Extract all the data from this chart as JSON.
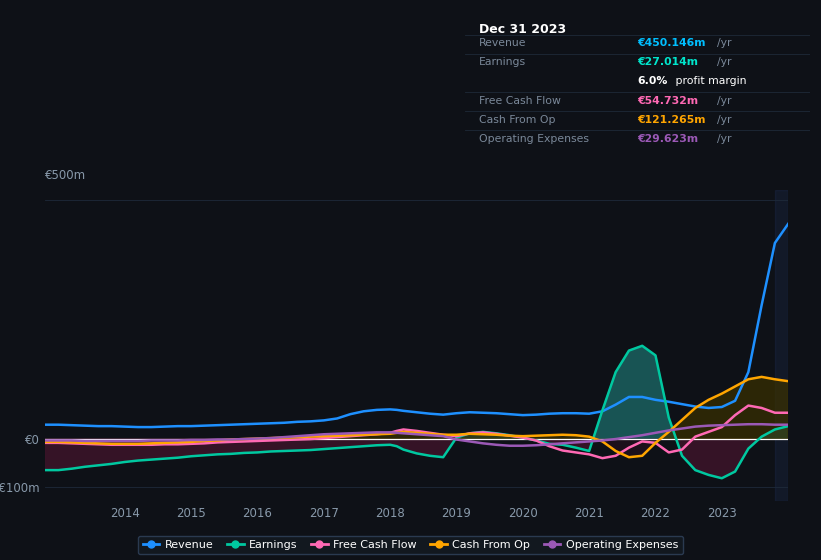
{
  "bg_color": "#0e1117",
  "plot_bg_color": "#0e1117",
  "grid_color": "#1e2a3a",
  "zero_line_color": "#ffffff",
  "title_text": "Dec 31 2023",
  "table_rows": [
    {
      "label": "Revenue",
      "value": "€450.146m",
      "val_color": "#00bfff",
      "sub": null
    },
    {
      "label": "Earnings",
      "value": "€27.014m",
      "val_color": "#00e5cc",
      "sub": "6.0% profit margin"
    },
    {
      "label": "Free Cash Flow",
      "value": "€54.732m",
      "val_color": "#ff69b4",
      "sub": null
    },
    {
      "label": "Cash From Op",
      "value": "€121.265m",
      "val_color": "#ffa500",
      "sub": null
    },
    {
      "label": "Operating Expenses",
      "value": "€29.623m",
      "val_color": "#9b59b6",
      "sub": null
    }
  ],
  "years": [
    2012.8,
    2013.0,
    2013.2,
    2013.4,
    2013.6,
    2013.8,
    2014.0,
    2014.2,
    2014.4,
    2014.6,
    2014.8,
    2015.0,
    2015.2,
    2015.4,
    2015.6,
    2015.8,
    2016.0,
    2016.2,
    2016.4,
    2016.6,
    2016.8,
    2017.0,
    2017.2,
    2017.4,
    2017.6,
    2017.8,
    2018.0,
    2018.1,
    2018.2,
    2018.4,
    2018.6,
    2018.8,
    2019.0,
    2019.2,
    2019.4,
    2019.6,
    2019.8,
    2020.0,
    2020.2,
    2020.4,
    2020.6,
    2020.8,
    2021.0,
    2021.2,
    2021.4,
    2021.6,
    2021.8,
    2022.0,
    2022.2,
    2022.4,
    2022.6,
    2022.8,
    2023.0,
    2023.2,
    2023.4,
    2023.6,
    2023.8,
    2024.0
  ],
  "revenue": [
    30,
    30,
    29,
    28,
    27,
    27,
    26,
    25,
    25,
    26,
    27,
    27,
    28,
    29,
    30,
    31,
    32,
    33,
    34,
    36,
    37,
    39,
    43,
    52,
    58,
    61,
    62,
    61,
    59,
    56,
    53,
    51,
    54,
    56,
    55,
    54,
    52,
    50,
    51,
    53,
    54,
    54,
    53,
    58,
    72,
    88,
    88,
    82,
    78,
    73,
    68,
    65,
    67,
    80,
    140,
    280,
    410,
    450
  ],
  "earnings": [
    -65,
    -65,
    -62,
    -58,
    -55,
    -52,
    -48,
    -45,
    -43,
    -41,
    -39,
    -36,
    -34,
    -32,
    -31,
    -29,
    -28,
    -26,
    -25,
    -24,
    -23,
    -21,
    -19,
    -17,
    -15,
    -13,
    -12,
    -15,
    -22,
    -30,
    -35,
    -38,
    3,
    12,
    15,
    12,
    8,
    3,
    -3,
    -10,
    -12,
    -18,
    -25,
    60,
    140,
    185,
    195,
    175,
    45,
    -35,
    -65,
    -75,
    -82,
    -68,
    -20,
    5,
    20,
    27
  ],
  "free_cash_flow": [
    -8,
    -8,
    -9,
    -10,
    -11,
    -12,
    -12,
    -12,
    -12,
    -11,
    -11,
    -10,
    -9,
    -7,
    -6,
    -5,
    -4,
    -3,
    -2,
    -1,
    0,
    2,
    4,
    6,
    8,
    10,
    13,
    17,
    20,
    17,
    13,
    9,
    6,
    12,
    14,
    11,
    7,
    3,
    -3,
    -15,
    -24,
    -28,
    -32,
    -40,
    -35,
    -18,
    -5,
    -8,
    -28,
    -22,
    5,
    15,
    25,
    50,
    70,
    65,
    55,
    55
  ],
  "cash_from_op": [
    -6,
    -6,
    -7,
    -8,
    -9,
    -10,
    -10,
    -10,
    -9,
    -8,
    -7,
    -6,
    -4,
    -3,
    -1,
    0,
    1,
    2,
    3,
    4,
    5,
    6,
    7,
    8,
    9,
    10,
    11,
    13,
    15,
    13,
    11,
    9,
    9,
    11,
    10,
    9,
    7,
    6,
    7,
    8,
    9,
    8,
    5,
    -5,
    -25,
    -38,
    -35,
    -8,
    15,
    40,
    65,
    82,
    95,
    110,
    125,
    130,
    125,
    121
  ],
  "operating_expenses": [
    -3,
    -3,
    -3,
    -4,
    -4,
    -4,
    -4,
    -4,
    -3,
    -3,
    -3,
    -2,
    -2,
    -1,
    -1,
    0,
    1,
    2,
    4,
    6,
    8,
    10,
    11,
    12,
    13,
    14,
    14,
    13,
    12,
    10,
    8,
    6,
    -1,
    -5,
    -9,
    -12,
    -14,
    -14,
    -13,
    -11,
    -9,
    -7,
    -5,
    -3,
    0,
    4,
    8,
    13,
    18,
    22,
    26,
    28,
    29,
    30,
    31,
    31,
    30,
    30
  ],
  "colors": {
    "revenue": "#1e90ff",
    "earnings": "#00c8a0",
    "free_cash_flow": "#ff69b4",
    "cash_from_op": "#ffa500",
    "operating_expenses": "#9b59b6"
  },
  "fill_pos_earnings": "#1a6060",
  "fill_neg_earnings": "#3a1428",
  "fill_pos_cfo": "#3a3000",
  "fill_neg_cfo": "#2a1020",
  "ylim": [
    -130,
    520
  ],
  "ytick_vals": [
    -100,
    0,
    500
  ],
  "ytick_labels": [
    "-€100m",
    "€0",
    "€500m"
  ],
  "xtick_years": [
    2014,
    2015,
    2016,
    2017,
    2018,
    2019,
    2020,
    2021,
    2022,
    2023
  ],
  "legend_labels": [
    "Revenue",
    "Earnings",
    "Free Cash Flow",
    "Cash From Op",
    "Operating Expenses"
  ],
  "legend_colors": [
    "#1e90ff",
    "#00c8a0",
    "#ff69b4",
    "#ffa500",
    "#9b59b6"
  ]
}
